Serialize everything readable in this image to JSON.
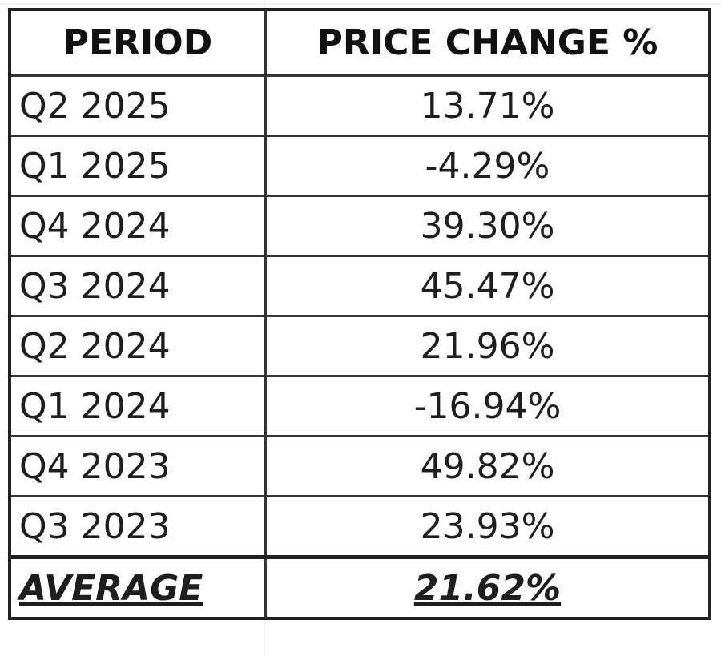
{
  "table": {
    "header": [
      "PERIOD",
      "PRICE CHANGE %"
    ],
    "rows": [
      [
        "Q2 2025",
        "13.71%"
      ],
      [
        "Q1 2025",
        "-4.29%"
      ],
      [
        "Q4 2024",
        "39.30%"
      ],
      [
        "Q3 2024",
        "45.47%"
      ],
      [
        "Q2 2024",
        "21.96%"
      ],
      [
        "Q1 2024",
        "-16.94%"
      ],
      [
        "Q4 2023",
        "49.82%"
      ],
      [
        "Q3 2023",
        "23.93%"
      ]
    ],
    "footer": [
      "AVERAGE",
      "21.62%"
    ]
  }
}
